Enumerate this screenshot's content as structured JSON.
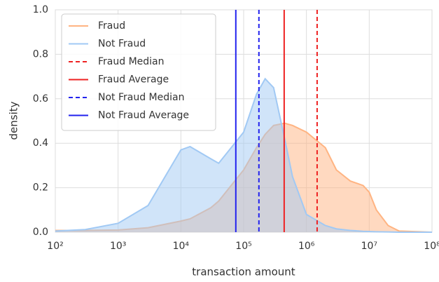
{
  "chart_data": {
    "type": "kde",
    "x_label": "transaction amount",
    "y_label": "density",
    "x_log": true,
    "grid": true,
    "legend": "upper left",
    "x": [
      100,
      300,
      1000,
      3000,
      10000,
      14000,
      30000,
      40000,
      100000,
      160000,
      220000,
      300000,
      450000,
      600000,
      1000000,
      2000000,
      3000000,
      5000000,
      8000000,
      10000000,
      13000000,
      20000000,
      30000000,
      100000000
    ],
    "series": [
      {
        "name": "Fraud",
        "color": "#ffb482",
        "values": [
          0.008,
          0.008,
          0.01,
          0.02,
          0.05,
          0.06,
          0.11,
          0.14,
          0.28,
          0.38,
          0.44,
          0.48,
          0.49,
          0.48,
          0.45,
          0.38,
          0.28,
          0.23,
          0.21,
          0.18,
          0.1,
          0.03,
          0.005,
          0
        ]
      },
      {
        "name": "Not Fraud",
        "color": "#a1c9f4",
        "values": [
          0.005,
          0.012,
          0.04,
          0.12,
          0.37,
          0.385,
          0.33,
          0.31,
          0.45,
          0.62,
          0.69,
          0.65,
          0.42,
          0.25,
          0.08,
          0.03,
          0.015,
          0.008,
          0.004,
          0.003,
          0.002,
          0.001,
          0,
          0
        ]
      }
    ],
    "reference_lines": [
      {
        "name": "Fraud Median",
        "color": "#ee2222",
        "style": "dashed",
        "x": 1480000
      },
      {
        "name": "Fraud Average",
        "color": "#ee2222",
        "style": "solid",
        "x": 442000
      },
      {
        "name": "Not Fraud Median",
        "color": "#2222ee",
        "style": "dashed",
        "x": 175000
      },
      {
        "name": "Not Fraud Average",
        "color": "#2222ee",
        "style": "solid",
        "x": 75000
      }
    ],
    "xlim": [
      100,
      100000000
    ],
    "xticks": [
      {
        "value": 100,
        "label": "10²"
      },
      {
        "value": 1000,
        "label": "10³"
      },
      {
        "value": 10000,
        "label": "10⁴"
      },
      {
        "value": 100000,
        "label": "10⁵"
      },
      {
        "value": 1000000,
        "label": "10⁶"
      },
      {
        "value": 10000000,
        "label": "10⁷"
      },
      {
        "value": 100000000,
        "label": "10⁸"
      }
    ],
    "ylim": [
      0,
      1
    ],
    "yticks": [
      {
        "value": 0,
        "label": "0.0"
      },
      {
        "value": 0.2,
        "label": "0.2"
      },
      {
        "value": 0.4,
        "label": "0.4"
      },
      {
        "value": 0.6,
        "label": "0.6"
      },
      {
        "value": 0.8,
        "label": "0.8"
      },
      {
        "value": 1,
        "label": "1.0"
      }
    ]
  }
}
